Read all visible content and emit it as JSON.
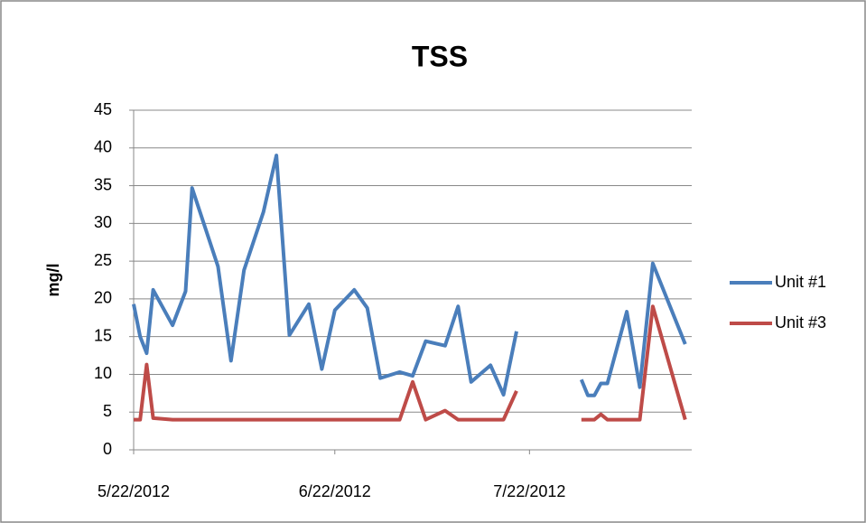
{
  "chart_data": {
    "type": "line",
    "title": "TSS",
    "y_label": "mg/l",
    "x": [
      "5/22/2012",
      "5/23/2012",
      "5/24/2012",
      "5/25/2012",
      "5/28/2012",
      "5/30/2012",
      "5/31/2012",
      "6/4/2012",
      "6/6/2012",
      "6/8/2012",
      "6/11/2012",
      "6/13/2012",
      "6/15/2012",
      "6/18/2012",
      "6/20/2012",
      "6/22/2012",
      "6/25/2012",
      "6/27/2012",
      "6/29/2012",
      "7/2/2012",
      "7/4/2012",
      "7/6/2012",
      "7/9/2012",
      "7/11/2012",
      "7/13/2012",
      "7/16/2012",
      "7/18/2012",
      "7/20/2012",
      "7/25/2012",
      "7/30/2012",
      "7/31/2012",
      "8/1/2012",
      "8/2/2012",
      "8/3/2012",
      "8/6/2012",
      "8/8/2012",
      "8/10/2012",
      "8/15/2012"
    ],
    "series": [
      {
        "name": "Unit #1",
        "color": "#4a7ebb",
        "values": [
          19.3,
          15,
          12.8,
          21.2,
          16.5,
          21,
          34.7,
          24.3,
          11.8,
          23.8,
          31.5,
          39,
          15.2,
          19.3,
          10.7,
          18.5,
          21.2,
          18.8,
          9.5,
          10.3,
          9.8,
          14.4,
          13.8,
          19,
          9,
          11.2,
          7.3,
          15.7,
          null,
          9.3,
          7.2,
          7.2,
          8.8,
          8.8,
          18.3,
          8.3,
          24.7,
          14
        ]
      },
      {
        "name": "Unit #3",
        "color": "#be4b48",
        "values": [
          4,
          4,
          11.3,
          4.2,
          4,
          4,
          4,
          4,
          4,
          4,
          4,
          4,
          4,
          4,
          4,
          4,
          4,
          4,
          4,
          4,
          9,
          4,
          5.2,
          4,
          4,
          4,
          4,
          7.8,
          null,
          4,
          4,
          4,
          4.7,
          4,
          4,
          4,
          19,
          4
        ]
      }
    ],
    "xlim": [
      "5/22/2012",
      "8/16/2012"
    ],
    "xticks": [
      "5/22/2012",
      "6/22/2012",
      "7/22/2012"
    ],
    "ylim": [
      0,
      45
    ],
    "yticks": [
      0,
      5,
      10,
      15,
      20,
      25,
      30,
      35,
      40,
      45
    ],
    "grid": true,
    "legend": "right"
  }
}
